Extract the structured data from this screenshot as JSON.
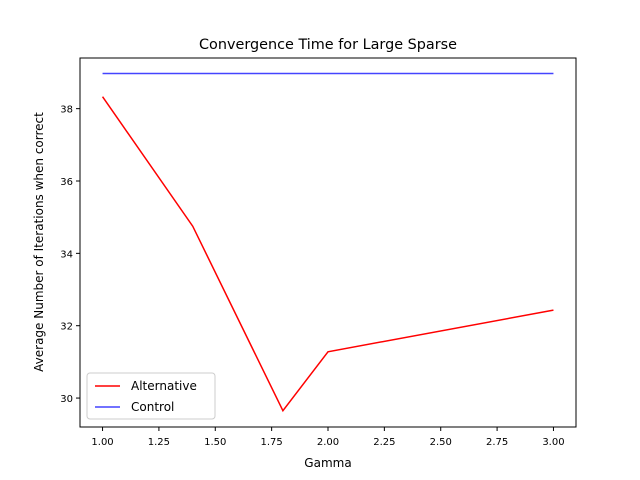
{
  "chart_data": {
    "type": "line",
    "title": "Convergence Time for Large Sparse",
    "xlabel": "Gamma",
    "ylabel": "Average Number of Iterations when correct",
    "xlim": [
      0.9,
      3.1
    ],
    "ylim": [
      29.2,
      39.4
    ],
    "xticks": [
      1.0,
      1.25,
      1.5,
      1.75,
      2.0,
      2.25,
      2.5,
      2.75,
      3.0
    ],
    "xtick_labels": [
      "1.00",
      "1.25",
      "1.50",
      "1.75",
      "2.00",
      "2.25",
      "2.50",
      "2.75",
      "3.00"
    ],
    "yticks": [
      30,
      32,
      34,
      36,
      38
    ],
    "ytick_labels": [
      "30",
      "32",
      "34",
      "36",
      "38"
    ],
    "grid": false,
    "legend_position": "lower-left",
    "series": [
      {
        "name": "Alternative",
        "color": "#ff0000",
        "x": [
          1.0,
          1.4,
          1.8,
          2.0,
          3.0
        ],
        "y": [
          38.33,
          34.75,
          29.65,
          31.28,
          32.43
        ]
      },
      {
        "name": "Control",
        "color": "#4444ff",
        "x": [
          1.0,
          3.0
        ],
        "y": [
          38.97,
          38.97
        ]
      }
    ]
  }
}
